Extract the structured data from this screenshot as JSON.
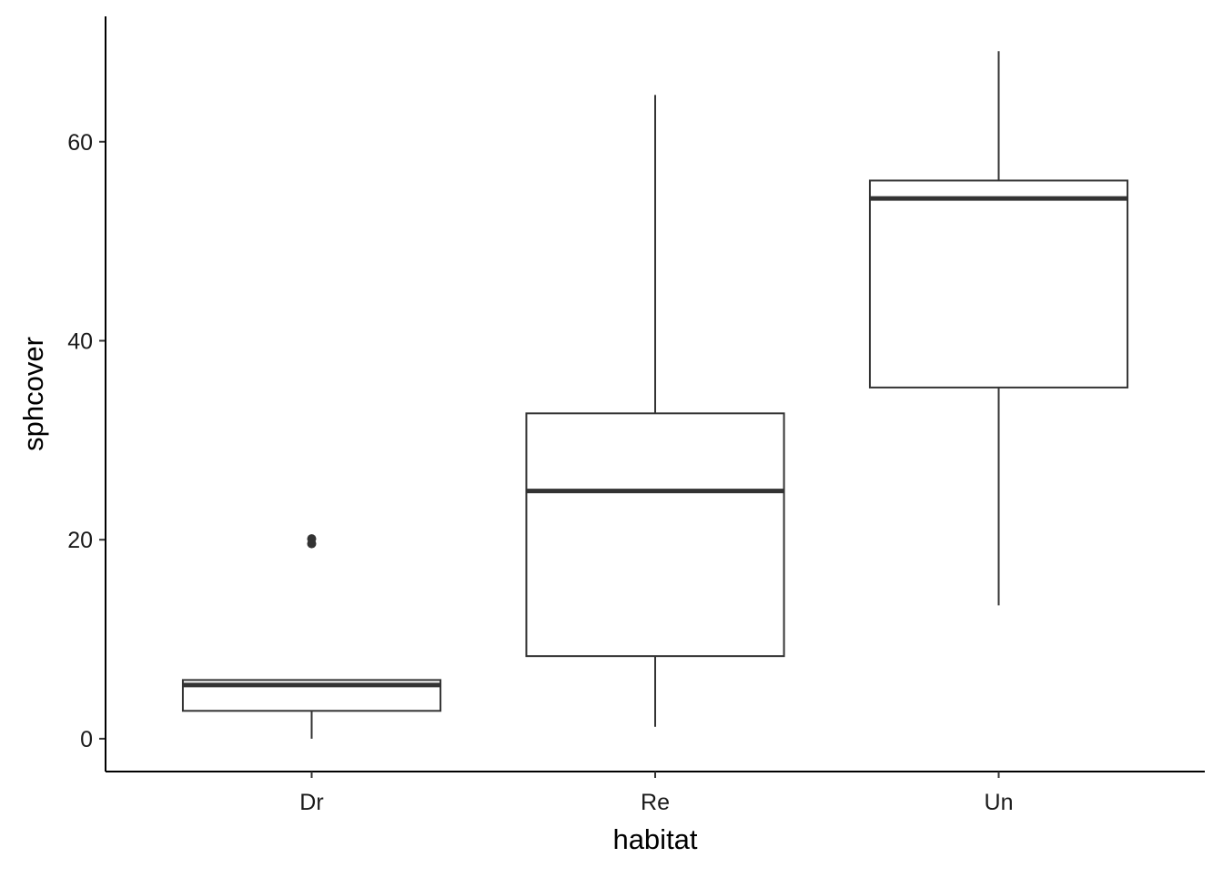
{
  "chart_data": {
    "type": "boxplot",
    "x_label": "habitat",
    "y_label": "sphcover",
    "categories": [
      "Dr",
      "Re",
      "Un"
    ],
    "whisker_low": [
      0,
      1.2,
      13.4
    ],
    "q1": [
      2.8,
      8.3,
      35.3
    ],
    "median": [
      5.4,
      24.9,
      54.3
    ],
    "q3": [
      5.9,
      32.7,
      56.1
    ],
    "whisker_high": [
      5.9,
      64.7,
      69.1
    ],
    "outliers": [
      [
        20.1,
        19.6
      ],
      [],
      []
    ],
    "color": "#333333",
    "ylim": [
      -3.3,
      72.6
    ],
    "yticks": [
      0,
      20,
      40,
      60
    ],
    "grid": false
  }
}
